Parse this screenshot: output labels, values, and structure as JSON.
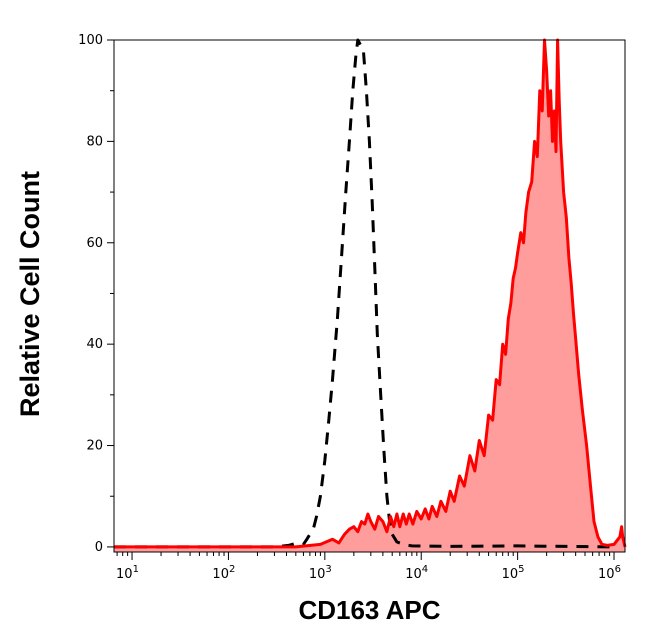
{
  "chart_data": {
    "type": "area",
    "title": "",
    "xlabel": "CD163 APC",
    "ylabel": "Relative Cell Count",
    "x_scale": "log",
    "xlim": [
      6.5,
      1300000
    ],
    "ylim": [
      -1,
      100
    ],
    "x_ticks": [
      {
        "value": 10,
        "base": "10",
        "exp": "1"
      },
      {
        "value": 100,
        "base": "10",
        "exp": "2"
      },
      {
        "value": 1000,
        "base": "10",
        "exp": "3"
      },
      {
        "value": 10000,
        "base": "10",
        "exp": "4"
      },
      {
        "value": 100000,
        "base": "10",
        "exp": "5"
      },
      {
        "value": 1000000,
        "base": "10",
        "exp": "6"
      }
    ],
    "y_ticks": [
      {
        "value": 0,
        "label": "0"
      },
      {
        "value": 20,
        "label": "20"
      },
      {
        "value": 40,
        "label": "40"
      },
      {
        "value": 60,
        "label": "60"
      },
      {
        "value": 80,
        "label": "80"
      },
      {
        "value": 100,
        "label": "100"
      }
    ],
    "grid": false,
    "legend": "none",
    "series": [
      {
        "style": "dashed",
        "color": "#000000",
        "fill": "none",
        "points": [
          [
            6.5,
            0
          ],
          [
            100,
            0
          ],
          [
            300,
            0
          ],
          [
            420,
            0.3
          ],
          [
            520,
            0.8
          ],
          [
            600,
            0.5
          ],
          [
            650,
            1.5
          ],
          [
            700,
            2.5
          ],
          [
            760,
            3.5
          ],
          [
            820,
            6
          ],
          [
            900,
            10
          ],
          [
            1000,
            17
          ],
          [
            1100,
            25
          ],
          [
            1200,
            33
          ],
          [
            1350,
            45
          ],
          [
            1500,
            58
          ],
          [
            1650,
            70
          ],
          [
            1800,
            80
          ],
          [
            1950,
            90
          ],
          [
            2100,
            97
          ],
          [
            2200,
            100
          ],
          [
            2350,
            99
          ],
          [
            2500,
            98.5
          ],
          [
            2700,
            90
          ],
          [
            2900,
            80
          ],
          [
            3100,
            68
          ],
          [
            3300,
            55
          ],
          [
            3500,
            42
          ],
          [
            3800,
            30
          ],
          [
            4100,
            19
          ],
          [
            4400,
            10
          ],
          [
            4700,
            5
          ],
          [
            5000,
            2.5
          ],
          [
            5600,
            1
          ],
          [
            6500,
            0.5
          ],
          [
            8000,
            0.2
          ],
          [
            20000,
            0.1
          ],
          [
            100000,
            0.2
          ],
          [
            1000000,
            0
          ]
        ]
      },
      {
        "style": "solid",
        "color": "#ff0000",
        "fill": "#ff9d9d",
        "points": [
          [
            6.5,
            0
          ],
          [
            50,
            0
          ],
          [
            500,
            0
          ],
          [
            900,
            0.5
          ],
          [
            1200,
            1.5
          ],
          [
            1400,
            0.8
          ],
          [
            1600,
            2.5
          ],
          [
            1800,
            3.5
          ],
          [
            2000,
            4
          ],
          [
            2200,
            3
          ],
          [
            2400,
            5
          ],
          [
            2600,
            4.5
          ],
          [
            2800,
            6.5
          ],
          [
            3000,
            5
          ],
          [
            3300,
            3.5
          ],
          [
            3600,
            6
          ],
          [
            4000,
            5
          ],
          [
            4400,
            3
          ],
          [
            4800,
            6
          ],
          [
            5200,
            4
          ],
          [
            5600,
            6.5
          ],
          [
            6000,
            4
          ],
          [
            6500,
            6.5
          ],
          [
            7000,
            4.5
          ],
          [
            7500,
            6.5
          ],
          [
            8200,
            4.5
          ],
          [
            9000,
            7
          ],
          [
            10000,
            5.5
          ],
          [
            11000,
            7.5
          ],
          [
            12000,
            5.5
          ],
          [
            13000,
            8
          ],
          [
            14500,
            6
          ],
          [
            16000,
            9
          ],
          [
            18000,
            7
          ],
          [
            20000,
            11
          ],
          [
            22000,
            9
          ],
          [
            25000,
            14
          ],
          [
            28000,
            12
          ],
          [
            32000,
            18
          ],
          [
            36000,
            15
          ],
          [
            40000,
            21
          ],
          [
            45000,
            18
          ],
          [
            50000,
            26
          ],
          [
            55000,
            25
          ],
          [
            60000,
            33
          ],
          [
            65000,
            32
          ],
          [
            70000,
            40
          ],
          [
            75000,
            38
          ],
          [
            80000,
            45
          ],
          [
            85000,
            48
          ],
          [
            90000,
            53
          ],
          [
            95000,
            55
          ],
          [
            100000,
            58
          ],
          [
            108000,
            62
          ],
          [
            115000,
            60
          ],
          [
            122000,
            66
          ],
          [
            130000,
            70
          ],
          [
            140000,
            72
          ],
          [
            150000,
            80
          ],
          [
            160000,
            77
          ],
          [
            170000,
            90
          ],
          [
            180000,
            86
          ],
          [
            190000,
            100
          ],
          [
            200000,
            94
          ],
          [
            210000,
            85
          ],
          [
            220000,
            90
          ],
          [
            230000,
            80
          ],
          [
            240000,
            86
          ],
          [
            250000,
            78
          ],
          [
            260000,
            100
          ],
          [
            270000,
            88
          ],
          [
            280000,
            80
          ],
          [
            300000,
            70
          ],
          [
            320000,
            65
          ],
          [
            340000,
            57
          ],
          [
            360000,
            52
          ],
          [
            380000,
            46
          ],
          [
            400000,
            41
          ],
          [
            430000,
            34
          ],
          [
            470000,
            27
          ],
          [
            520000,
            20
          ],
          [
            570000,
            12
          ],
          [
            620000,
            5
          ],
          [
            680000,
            2
          ],
          [
            750000,
            0.5
          ],
          [
            850000,
            0.3
          ],
          [
            1000000,
            0.5
          ],
          [
            1150000,
            2
          ],
          [
            1200000,
            4
          ],
          [
            1230000,
            2
          ],
          [
            1300000,
            0
          ]
        ]
      }
    ]
  }
}
